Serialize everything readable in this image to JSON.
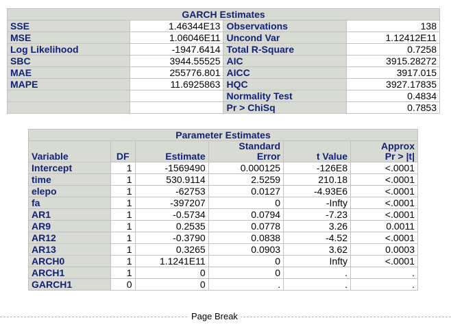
{
  "garch": {
    "title": "GARCH Estimates",
    "rows": [
      {
        "l1": "SSE",
        "v1": "1.46344E13",
        "l2": "Observations",
        "v2": "138"
      },
      {
        "l1": "MSE",
        "v1": "1.06046E11",
        "l2": "Uncond Var",
        "v2": "1.12412E11"
      },
      {
        "l1": "Log Likelihood",
        "v1": "-1947.6414",
        "l2": "Total R-Square",
        "v2": "0.7258"
      },
      {
        "l1": "SBC",
        "v1": "3944.55525",
        "l2": "AIC",
        "v2": "3915.28272"
      },
      {
        "l1": "MAE",
        "v1": "255776.801",
        "l2": "AICC",
        "v2": "3917.015"
      },
      {
        "l1": "MAPE",
        "v1": "11.6925863",
        "l2": "HQC",
        "v2": "3927.17835"
      },
      {
        "l1": "",
        "v1": "",
        "l2": "Normality Test",
        "v2": "0.4834"
      },
      {
        "l1": "",
        "v1": "",
        "l2": "Pr > ChiSq",
        "v2": "0.7853"
      }
    ]
  },
  "params": {
    "title": "Parameter Estimates",
    "headers": {
      "variable": "Variable",
      "df": "DF",
      "estimate": "Estimate",
      "stderr_1": "Standard",
      "stderr_2": "Error",
      "tvalue": "t Value",
      "approx_1": "Approx",
      "approx_2": "Pr > |t|"
    },
    "rows": [
      {
        "variable": "Intercept",
        "df": "1",
        "estimate": "-1569490",
        "stderr": "0.000125",
        "tvalue": "-126E8",
        "p": "<.0001"
      },
      {
        "variable": "time",
        "df": "1",
        "estimate": "530.9114",
        "stderr": "2.5259",
        "tvalue": "210.18",
        "p": "<.0001"
      },
      {
        "variable": "elepo",
        "df": "1",
        "estimate": "-62753",
        "stderr": "0.0127",
        "tvalue": "-4.93E6",
        "p": "<.0001"
      },
      {
        "variable": "fa",
        "df": "1",
        "estimate": "-397207",
        "stderr": "0",
        "tvalue": "-Infty",
        "p": "<.0001"
      },
      {
        "variable": "AR1",
        "df": "1",
        "estimate": "-0.5734",
        "stderr": "0.0794",
        "tvalue": "-7.23",
        "p": "<.0001"
      },
      {
        "variable": "AR9",
        "df": "1",
        "estimate": "0.2535",
        "stderr": "0.0778",
        "tvalue": "3.26",
        "p": "0.0011"
      },
      {
        "variable": "AR12",
        "df": "1",
        "estimate": "-0.3790",
        "stderr": "0.0838",
        "tvalue": "-4.52",
        "p": "<.0001"
      },
      {
        "variable": "AR13",
        "df": "1",
        "estimate": "0.3265",
        "stderr": "0.0903",
        "tvalue": "3.62",
        "p": "0.0003"
      },
      {
        "variable": "ARCH0",
        "df": "1",
        "estimate": "1.1241E11",
        "stderr": "0",
        "tvalue": "Infty",
        "p": "<.0001"
      },
      {
        "variable": "ARCH1",
        "df": "1",
        "estimate": "0",
        "stderr": "0",
        "tvalue": ".",
        "p": "."
      },
      {
        "variable": "GARCH1",
        "df": "0",
        "estimate": "0",
        "stderr": ".",
        "tvalue": ".",
        "p": "."
      }
    ]
  },
  "page_break": "Page Break",
  "colors": {
    "header_bg": "#d8dbd3",
    "header_text": "#112277",
    "border": "#c1c1c1"
  }
}
